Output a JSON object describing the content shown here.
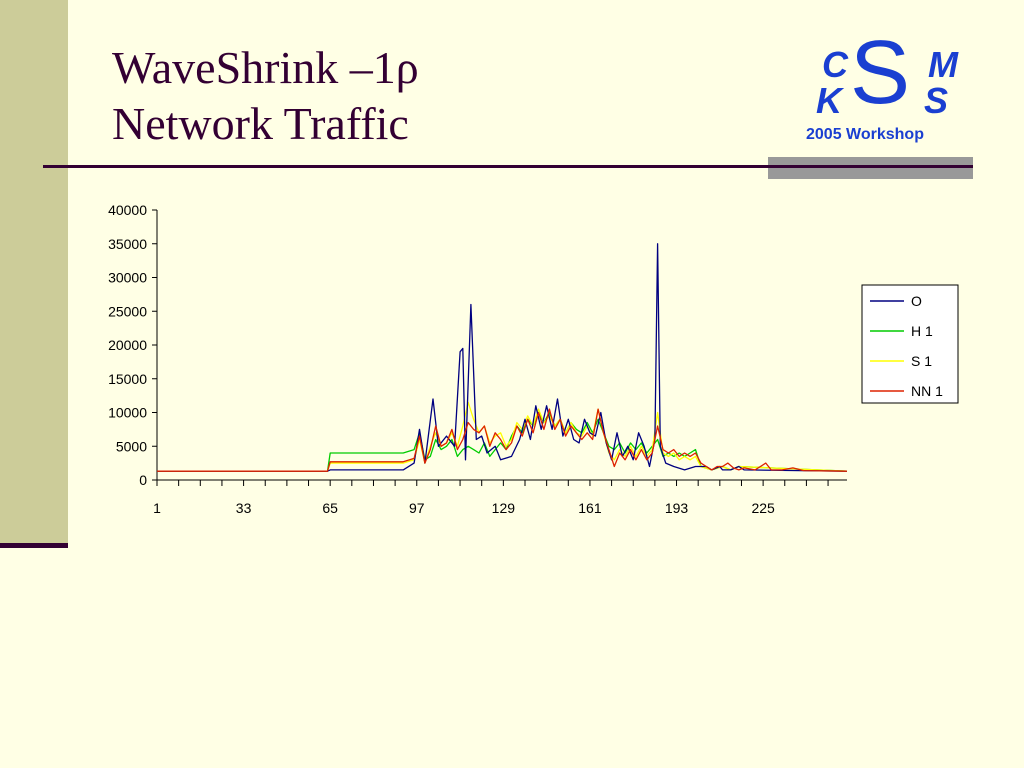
{
  "slide": {
    "title_line1": "WaveShrink –1ρ",
    "title_line2": "Network Traffic"
  },
  "logo": {
    "c": "C",
    "s": "S",
    "m": "M",
    "k": "K",
    "s2": "S",
    "workshop": "2005 Workshop",
    "color": "#1a3fd1"
  },
  "colors": {
    "background": "#ffffe5",
    "sidebar": "#cccc99",
    "accent": "#330033"
  },
  "chart_data": {
    "type": "line",
    "title": "",
    "xlabel": "",
    "ylabel": "",
    "ylim": [
      0,
      40000
    ],
    "yticks": [
      0,
      5000,
      10000,
      15000,
      20000,
      25000,
      30000,
      35000,
      40000
    ],
    "xlim": [
      1,
      256
    ],
    "xticks": [
      "1",
      "33",
      "65",
      "97",
      "129",
      "161",
      "193",
      "225"
    ],
    "legend_position": "right",
    "grid": false,
    "series": [
      {
        "name": "O",
        "color": "#000080",
        "points": [
          [
            1,
            1300
          ],
          [
            64,
            1300
          ],
          [
            65,
            1500
          ],
          [
            92,
            1500
          ],
          [
            96,
            2500
          ],
          [
            98,
            7500
          ],
          [
            100,
            2500
          ],
          [
            103,
            12000
          ],
          [
            105,
            5000
          ],
          [
            108,
            6500
          ],
          [
            111,
            5000
          ],
          [
            113,
            19000
          ],
          [
            114,
            19500
          ],
          [
            115,
            3000
          ],
          [
            117,
            26000
          ],
          [
            119,
            6000
          ],
          [
            121,
            6500
          ],
          [
            123,
            4000
          ],
          [
            126,
            5000
          ],
          [
            128,
            3000
          ],
          [
            132,
            3500
          ],
          [
            135,
            6000
          ],
          [
            137,
            9000
          ],
          [
            139,
            6000
          ],
          [
            141,
            11000
          ],
          [
            143,
            7500
          ],
          [
            145,
            11000
          ],
          [
            147,
            7500
          ],
          [
            149,
            12000
          ],
          [
            151,
            6500
          ],
          [
            153,
            9000
          ],
          [
            155,
            6000
          ],
          [
            157,
            5500
          ],
          [
            159,
            9000
          ],
          [
            161,
            7000
          ],
          [
            163,
            6500
          ],
          [
            165,
            10000
          ],
          [
            167,
            5500
          ],
          [
            169,
            3000
          ],
          [
            171,
            7000
          ],
          [
            173,
            3500
          ],
          [
            175,
            5000
          ],
          [
            177,
            3000
          ],
          [
            179,
            7000
          ],
          [
            181,
            5000
          ],
          [
            183,
            2000
          ],
          [
            185,
            6000
          ],
          [
            186,
            35000
          ],
          [
            187,
            5000
          ],
          [
            189,
            2500
          ],
          [
            192,
            2000
          ],
          [
            196,
            1500
          ],
          [
            200,
            2000
          ],
          [
            204,
            2000
          ],
          [
            206,
            1500
          ],
          [
            209,
            2000
          ],
          [
            210,
            1500
          ],
          [
            213,
            1500
          ],
          [
            216,
            2000
          ],
          [
            218,
            1500
          ],
          [
            256,
            1300
          ]
        ]
      },
      {
        "name": "H 1",
        "color": "#00cc00",
        "points": [
          [
            1,
            1300
          ],
          [
            64,
            1300
          ],
          [
            65,
            4000
          ],
          [
            92,
            4000
          ],
          [
            96,
            4500
          ],
          [
            98,
            7000
          ],
          [
            100,
            3000
          ],
          [
            102,
            3500
          ],
          [
            104,
            6000
          ],
          [
            106,
            4500
          ],
          [
            108,
            5000
          ],
          [
            110,
            6000
          ],
          [
            112,
            3500
          ],
          [
            114,
            4500
          ],
          [
            116,
            5000
          ],
          [
            118,
            4500
          ],
          [
            120,
            4000
          ],
          [
            122,
            5500
          ],
          [
            124,
            3500
          ],
          [
            126,
            4500
          ],
          [
            128,
            5500
          ],
          [
            130,
            4500
          ],
          [
            132,
            6500
          ],
          [
            134,
            8000
          ],
          [
            136,
            7000
          ],
          [
            138,
            9000
          ],
          [
            140,
            8000
          ],
          [
            142,
            10000
          ],
          [
            144,
            8500
          ],
          [
            146,
            10000
          ],
          [
            148,
            8000
          ],
          [
            150,
            9000
          ],
          [
            152,
            7000
          ],
          [
            154,
            8500
          ],
          [
            156,
            7500
          ],
          [
            158,
            7000
          ],
          [
            160,
            8500
          ],
          [
            162,
            7000
          ],
          [
            164,
            9000
          ],
          [
            166,
            7000
          ],
          [
            168,
            5000
          ],
          [
            170,
            4500
          ],
          [
            172,
            5500
          ],
          [
            174,
            4000
          ],
          [
            176,
            5500
          ],
          [
            178,
            4500
          ],
          [
            180,
            5500
          ],
          [
            182,
            4000
          ],
          [
            184,
            5000
          ],
          [
            186,
            6000
          ],
          [
            188,
            3500
          ],
          [
            190,
            4000
          ],
          [
            192,
            3500
          ],
          [
            194,
            4000
          ],
          [
            196,
            3500
          ],
          [
            198,
            4000
          ],
          [
            200,
            4500
          ],
          [
            202,
            2000
          ],
          [
            206,
            1500
          ],
          [
            210,
            2000
          ],
          [
            213,
            1500
          ],
          [
            216,
            2000
          ],
          [
            256,
            1300
          ]
        ]
      },
      {
        "name": "S 1",
        "color": "#ffff00",
        "points": [
          [
            1,
            1300
          ],
          [
            64,
            1300
          ],
          [
            65,
            2500
          ],
          [
            92,
            2500
          ],
          [
            96,
            3000
          ],
          [
            98,
            6000
          ],
          [
            100,
            2500
          ],
          [
            102,
            5000
          ],
          [
            104,
            7000
          ],
          [
            106,
            5000
          ],
          [
            108,
            5500
          ],
          [
            110,
            7000
          ],
          [
            112,
            5000
          ],
          [
            114,
            8000
          ],
          [
            116,
            11500
          ],
          [
            118,
            9000
          ],
          [
            120,
            7000
          ],
          [
            122,
            8000
          ],
          [
            124,
            5500
          ],
          [
            126,
            6500
          ],
          [
            128,
            7000
          ],
          [
            130,
            5000
          ],
          [
            132,
            6000
          ],
          [
            134,
            8500
          ],
          [
            136,
            7500
          ],
          [
            138,
            9500
          ],
          [
            140,
            8000
          ],
          [
            142,
            10500
          ],
          [
            144,
            8500
          ],
          [
            146,
            9500
          ],
          [
            148,
            8000
          ],
          [
            150,
            9000
          ],
          [
            152,
            7000
          ],
          [
            154,
            8500
          ],
          [
            156,
            7000
          ],
          [
            158,
            6500
          ],
          [
            160,
            8000
          ],
          [
            162,
            6500
          ],
          [
            164,
            10500
          ],
          [
            166,
            7000
          ],
          [
            168,
            4000
          ],
          [
            170,
            3000
          ],
          [
            172,
            4500
          ],
          [
            174,
            3500
          ],
          [
            176,
            5000
          ],
          [
            178,
            3500
          ],
          [
            180,
            5000
          ],
          [
            182,
            3500
          ],
          [
            184,
            4500
          ],
          [
            186,
            10000
          ],
          [
            188,
            4000
          ],
          [
            190,
            3500
          ],
          [
            192,
            4000
          ],
          [
            194,
            3000
          ],
          [
            196,
            3500
          ],
          [
            198,
            3000
          ],
          [
            200,
            3500
          ],
          [
            202,
            2000
          ],
          [
            206,
            1500
          ],
          [
            210,
            2000
          ],
          [
            213,
            1500
          ],
          [
            216,
            2000
          ],
          [
            256,
            1300
          ]
        ]
      },
      {
        "name": "NN 1",
        "color": "#dd2200",
        "points": [
          [
            1,
            1300
          ],
          [
            64,
            1300
          ],
          [
            65,
            2700
          ],
          [
            92,
            2700
          ],
          [
            96,
            3200
          ],
          [
            98,
            6500
          ],
          [
            100,
            2500
          ],
          [
            102,
            4500
          ],
          [
            104,
            8000
          ],
          [
            106,
            5000
          ],
          [
            108,
            5500
          ],
          [
            110,
            7500
          ],
          [
            112,
            4500
          ],
          [
            114,
            6000
          ],
          [
            116,
            8500
          ],
          [
            118,
            7500
          ],
          [
            120,
            7000
          ],
          [
            122,
            8000
          ],
          [
            124,
            5000
          ],
          [
            126,
            7000
          ],
          [
            128,
            6000
          ],
          [
            130,
            4500
          ],
          [
            132,
            5500
          ],
          [
            134,
            8000
          ],
          [
            136,
            6500
          ],
          [
            138,
            9000
          ],
          [
            140,
            7000
          ],
          [
            142,
            10000
          ],
          [
            144,
            7500
          ],
          [
            146,
            10500
          ],
          [
            148,
            7500
          ],
          [
            150,
            9000
          ],
          [
            152,
            6500
          ],
          [
            154,
            8000
          ],
          [
            156,
            7000
          ],
          [
            158,
            6000
          ],
          [
            160,
            7000
          ],
          [
            162,
            6000
          ],
          [
            164,
            10500
          ],
          [
            166,
            7000
          ],
          [
            168,
            4500
          ],
          [
            170,
            2000
          ],
          [
            172,
            4000
          ],
          [
            174,
            3000
          ],
          [
            176,
            4500
          ],
          [
            178,
            3000
          ],
          [
            180,
            4500
          ],
          [
            182,
            3000
          ],
          [
            184,
            4000
          ],
          [
            186,
            8000
          ],
          [
            188,
            4500
          ],
          [
            190,
            4000
          ],
          [
            192,
            4500
          ],
          [
            194,
            3500
          ],
          [
            196,
            4000
          ],
          [
            198,
            3500
          ],
          [
            200,
            4000
          ],
          [
            202,
            2500
          ],
          [
            204,
            2000
          ],
          [
            206,
            1500
          ],
          [
            208,
            2000
          ],
          [
            210,
            2000
          ],
          [
            212,
            2500
          ],
          [
            214,
            1800
          ],
          [
            216,
            1500
          ],
          [
            218,
            1800
          ],
          [
            222,
            1500
          ],
          [
            226,
            2500
          ],
          [
            228,
            1500
          ],
          [
            232,
            1500
          ],
          [
            236,
            1800
          ],
          [
            240,
            1400
          ],
          [
            256,
            1300
          ]
        ]
      }
    ]
  }
}
